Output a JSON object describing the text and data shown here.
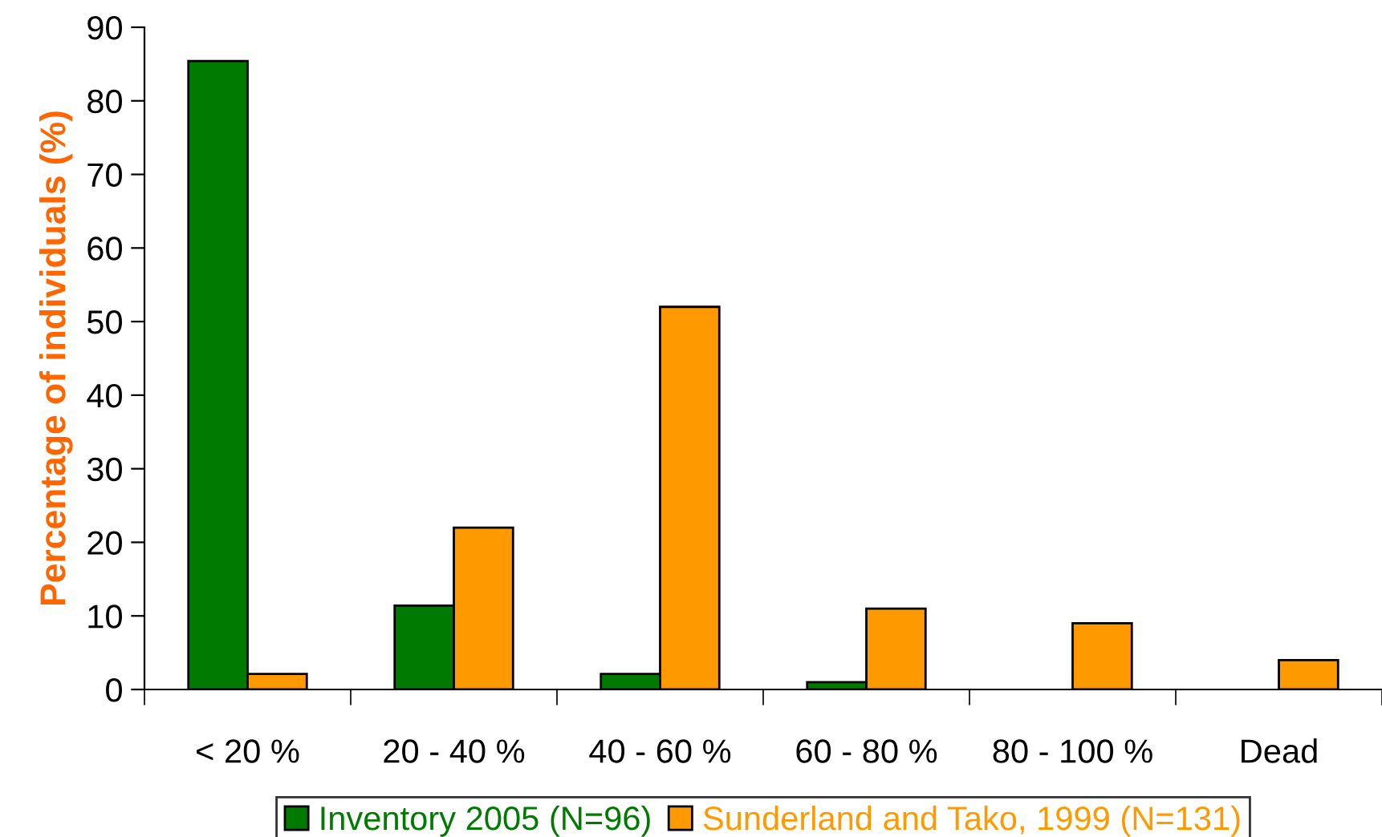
{
  "chart_data": {
    "type": "bar",
    "ylabel": "Percentage of individuals (%)",
    "categories": [
      "< 20 %",
      "20 - 40 %",
      "40 - 60 %",
      "60 - 80 %",
      "80 - 100 %",
      "Dead"
    ],
    "series": [
      {
        "name": "Inventory 2005 (N=96)",
        "color": "#007a00",
        "values": [
          85.4,
          11.4,
          2.1,
          1.0,
          null,
          null
        ]
      },
      {
        "name": "Sunderland and Tako, 1999 (N=131)",
        "color": "#ff9900",
        "values": [
          2.1,
          22,
          52,
          11,
          9,
          4
        ]
      }
    ],
    "ylim": [
      0,
      90
    ],
    "yticks": [
      0,
      10,
      20,
      30,
      40,
      50,
      60,
      70,
      80,
      90
    ],
    "grid": false,
    "legend": "bottom"
  }
}
